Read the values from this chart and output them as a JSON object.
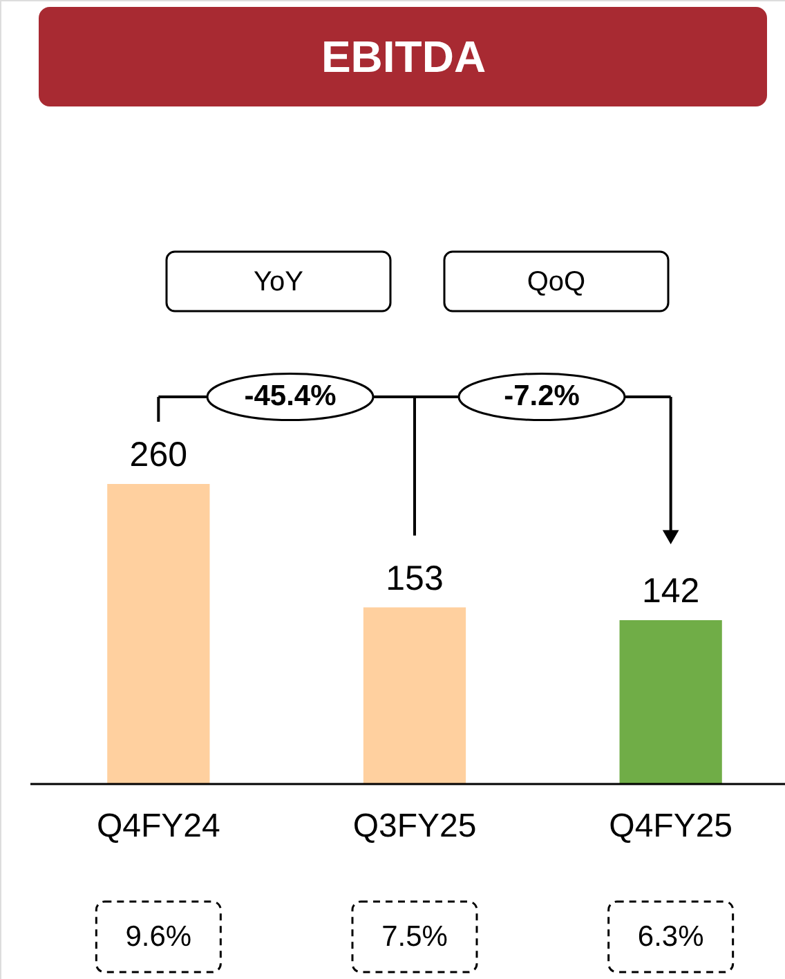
{
  "chart_data": {
    "type": "bar",
    "title": "EBITDA",
    "categories": [
      "Q4FY24",
      "Q3FY25",
      "Q4FY25"
    ],
    "values": [
      260,
      153,
      142
    ],
    "colors": [
      "#ffd09f",
      "#ffd09f",
      "#70ad47"
    ],
    "data_labels": true,
    "annotations": [
      "YoY",
      "QoQ",
      "-45.4%",
      "-7.2%",
      "9.6%",
      "7.5%",
      "6.3%"
    ]
  }
}
